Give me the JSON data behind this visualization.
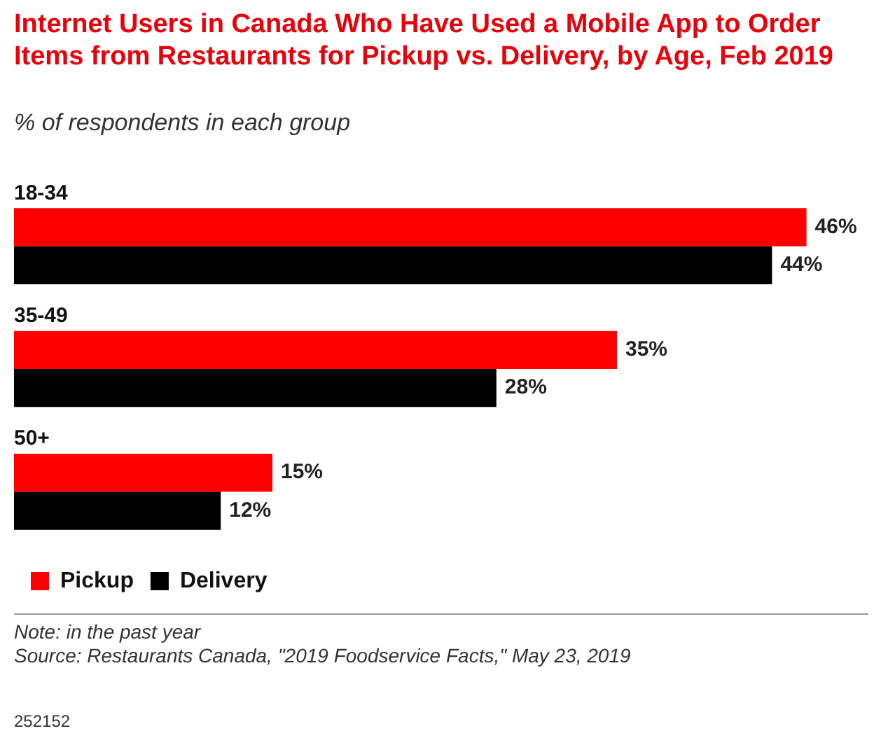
{
  "chart_data": {
    "type": "bar",
    "orientation": "horizontal",
    "title": "Internet Users in Canada Who Have Used a Mobile App to Order Items from Restaurants for Pickup vs. Delivery, by Age, Feb 2019",
    "subtitle": "% of respondents in each group",
    "categories": [
      "18-34",
      "35-49",
      "50+"
    ],
    "series": [
      {
        "name": "Pickup",
        "color": "#ff0000",
        "values": [
          46,
          35,
          15
        ],
        "value_labels": [
          "46%",
          "35%",
          "15%"
        ]
      },
      {
        "name": "Delivery",
        "color": "#000000",
        "values": [
          44,
          28,
          12
        ],
        "value_labels": [
          "44%",
          "28%",
          "12%"
        ]
      }
    ],
    "legend": "bottom",
    "annotations": [
      "Note: in the past year",
      "Source: Restaurants Canada, \"2019 Foodservice Facts,\" May 23, 2019",
      "252152"
    ]
  }
}
